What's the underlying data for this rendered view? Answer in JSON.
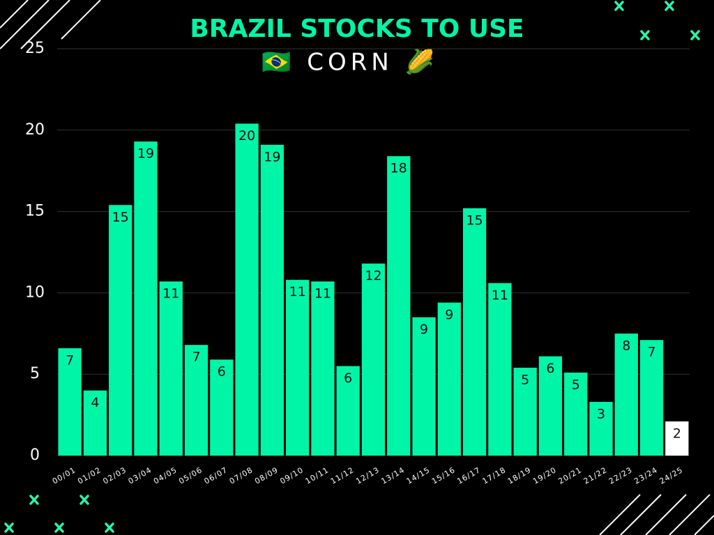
{
  "chart_data": {
    "type": "bar",
    "title": "BRAZIL STOCKS TO USE",
    "subtitle": "🇧🇷 CORN 🌽",
    "categories": [
      "00/01",
      "01/02",
      "02/03",
      "03/04",
      "04/05",
      "05/06",
      "06/07",
      "07/08",
      "08/09",
      "09/10",
      "10/11",
      "11/12",
      "12/13",
      "13/14",
      "14/15",
      "15/16",
      "16/17",
      "17/18",
      "18/19",
      "19/20",
      "20/21",
      "21/22",
      "22/23",
      "23/24",
      "24/25"
    ],
    "values": [
      6.6,
      4.0,
      15.4,
      19.3,
      10.7,
      6.8,
      5.9,
      20.4,
      19.1,
      10.8,
      10.7,
      5.5,
      11.8,
      18.4,
      8.5,
      9.4,
      15.2,
      10.6,
      5.4,
      6.1,
      5.1,
      3.3,
      7.5,
      7.1,
      2.1
    ],
    "value_labels": [
      "7",
      "4",
      "15",
      "19",
      "11",
      "7",
      "6",
      "20",
      "19",
      "11",
      "11",
      "6",
      "12",
      "18",
      "9",
      "9",
      "15",
      "11",
      "5",
      "6",
      "5",
      "3",
      "8",
      "7",
      "2"
    ],
    "colors": [
      "#00f5a6",
      "#00f5a6",
      "#00f5a6",
      "#00f5a6",
      "#00f5a6",
      "#00f5a6",
      "#00f5a6",
      "#00f5a6",
      "#00f5a6",
      "#00f5a6",
      "#00f5a6",
      "#00f5a6",
      "#00f5a6",
      "#00f5a6",
      "#00f5a6",
      "#00f5a6",
      "#00f5a6",
      "#00f5a6",
      "#00f5a6",
      "#00f5a6",
      "#00f5a6",
      "#00f5a6",
      "#00f5a6",
      "#00f5a6",
      "#ffffff"
    ],
    "ylim": [
      0,
      25
    ],
    "yticks": [
      0,
      5,
      10,
      15,
      20,
      25
    ],
    "grid": true
  }
}
